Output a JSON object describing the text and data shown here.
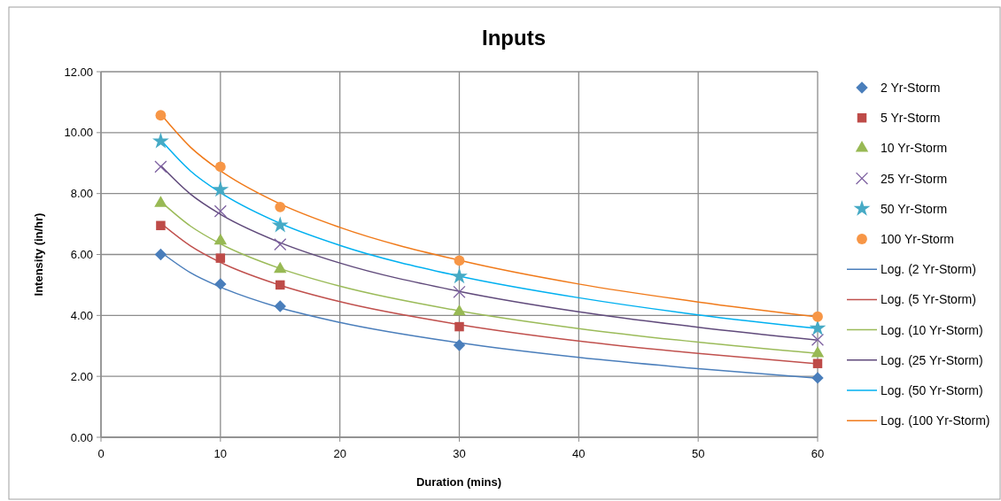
{
  "chart_data": {
    "type": "scatter",
    "title": "Inputs",
    "xlabel": "Duration (mins)",
    "ylabel": "Intensity (in/hr)",
    "xlim": [
      0,
      60
    ],
    "xticks": [
      0,
      10,
      20,
      30,
      40,
      50,
      60
    ],
    "ylim": [
      0,
      12
    ],
    "yticks": [
      {
        "value": 0,
        "label": "0.00"
      },
      {
        "value": 2,
        "label": "2.00"
      },
      {
        "value": 4,
        "label": "4.00"
      },
      {
        "value": 6,
        "label": "6.00"
      },
      {
        "value": 8,
        "label": "8.00"
      },
      {
        "value": 10,
        "label": "10.00"
      },
      {
        "value": 12,
        "label": "12.00"
      }
    ],
    "grid": true,
    "legend": "right",
    "x": [
      5,
      10,
      15,
      30,
      60
    ],
    "series": [
      {
        "name": "2 Yr-Storm",
        "color": "#4a7ebb",
        "marker": "diamond",
        "values": [
          6.0,
          5.03,
          4.3,
          3.02,
          1.95
        ]
      },
      {
        "name": "5 Yr-Storm",
        "color": "#be4b48",
        "marker": "square",
        "values": [
          6.95,
          5.88,
          5.0,
          3.63,
          2.42
        ]
      },
      {
        "name": "10 Yr-Storm",
        "color": "#98b954",
        "marker": "triangle",
        "values": [
          7.68,
          6.45,
          5.52,
          4.12,
          2.75
        ]
      },
      {
        "name": "25 Yr-Storm",
        "color": "#7d60a0",
        "marker": "cross",
        "values": [
          8.88,
          7.42,
          6.33,
          4.77,
          3.2
        ]
      },
      {
        "name": "50 Yr-Storm",
        "color": "#46aac5",
        "marker": "star",
        "values": [
          9.72,
          8.13,
          6.96,
          5.28,
          3.58
        ]
      },
      {
        "name": "100 Yr-Storm",
        "color": "#f79646",
        "marker": "circle",
        "values": [
          10.57,
          8.88,
          7.56,
          5.8,
          3.96
        ]
      },
      {
        "name": "Log. (2 Yr-Storm)",
        "type": "line",
        "color": "#4a7ebb",
        "marker": "none",
        "x": [
          5,
          7.5,
          10,
          15,
          20,
          30,
          40,
          50,
          60
        ],
        "values": [
          6.08,
          5.4,
          4.93,
          4.25,
          3.77,
          3.1,
          2.62,
          2.25,
          1.94
        ]
      },
      {
        "name": "Log. (5 Yr-Storm)",
        "type": "line",
        "color": "#c0504d",
        "marker": "none",
        "x": [
          5,
          7.5,
          10,
          15,
          20,
          30,
          40,
          50,
          60
        ],
        "values": [
          7.03,
          6.28,
          5.74,
          4.99,
          4.45,
          3.7,
          3.16,
          2.75,
          2.41
        ]
      },
      {
        "name": "Log. (10 Yr-Storm)",
        "type": "line",
        "color": "#9bbb59",
        "marker": "none",
        "x": [
          5,
          7.5,
          10,
          15,
          20,
          30,
          40,
          50,
          60
        ],
        "values": [
          7.74,
          6.93,
          6.35,
          5.54,
          4.96,
          4.15,
          3.57,
          3.12,
          2.75
        ]
      },
      {
        "name": "Log. (25 Yr-Storm)",
        "type": "line",
        "color": "#604a7b",
        "marker": "none",
        "x": [
          5,
          7.5,
          10,
          15,
          20,
          30,
          40,
          50,
          60
        ],
        "values": [
          8.92,
          7.98,
          7.32,
          6.39,
          5.72,
          4.79,
          4.12,
          3.61,
          3.19
        ]
      },
      {
        "name": "Log. (50 Yr-Storm)",
        "type": "line",
        "color": "#00b0f0",
        "marker": "none",
        "x": [
          5,
          7.5,
          10,
          15,
          20,
          30,
          40,
          50,
          60
        ],
        "values": [
          9.76,
          8.74,
          8.03,
          7.02,
          6.3,
          5.29,
          4.58,
          4.02,
          3.57
        ]
      },
      {
        "name": "Log. (100 Yr-Storm)",
        "type": "line",
        "color": "#f07a1a",
        "marker": "none",
        "x": [
          5,
          7.5,
          10,
          15,
          20,
          30,
          40,
          50,
          60
        ],
        "values": [
          10.61,
          9.52,
          8.75,
          7.66,
          6.89,
          5.81,
          5.03,
          4.44,
          3.95
        ]
      }
    ]
  }
}
